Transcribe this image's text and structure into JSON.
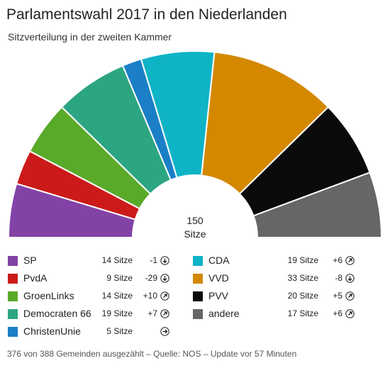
{
  "title": "Parlamentswahl 2017 in den Niederlanden",
  "subtitle": "Sitzverteilung in der zweiten Kammer",
  "center": {
    "total": "150",
    "unit": "Sitze"
  },
  "chart_data": {
    "type": "parliament-semicircle",
    "total_seats": 150,
    "series": [
      {
        "name": "SP",
        "seats": 14,
        "seats_label": "14 Sitze",
        "change": "-1",
        "direction": "down",
        "color": "#8343a6"
      },
      {
        "name": "PvdA",
        "seats": 9,
        "seats_label": "9 Sitze",
        "change": "-29",
        "direction": "down",
        "color": "#cc1a1a"
      },
      {
        "name": "GroenLinks",
        "seats": 14,
        "seats_label": "14 Sitze",
        "change": "+10",
        "direction": "up",
        "color": "#5aaa2a"
      },
      {
        "name": "Democraten 66",
        "seats": 19,
        "seats_label": "19 Sitze",
        "change": "+7",
        "direction": "up",
        "color": "#2ca582"
      },
      {
        "name": "ChristenUnie",
        "seats": 5,
        "seats_label": "5 Sitze",
        "change": "",
        "direction": "right",
        "color": "#1a7fc6"
      },
      {
        "name": "CDA",
        "seats": 19,
        "seats_label": "19 Sitze",
        "change": "+6",
        "direction": "up",
        "color": "#0fb3c6"
      },
      {
        "name": "VVD",
        "seats": 33,
        "seats_label": "33 Sitze",
        "change": "-8",
        "direction": "down",
        "color": "#d48800"
      },
      {
        "name": "PVV",
        "seats": 20,
        "seats_label": "20 Sitze",
        "change": "+5",
        "direction": "up",
        "color": "#0a0a0a"
      },
      {
        "name": "andere",
        "seats": 17,
        "seats_label": "17 Sitze",
        "change": "+6",
        "direction": "up",
        "color": "#666666"
      }
    ]
  },
  "footer": "376 von 388 Gemeinden ausgezählt – Quelle: NOS – Update vor 57 Minuten"
}
